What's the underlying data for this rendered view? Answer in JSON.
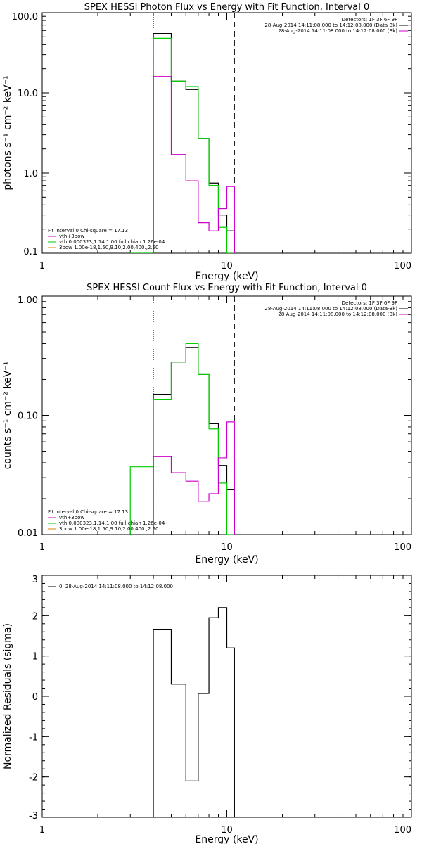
{
  "colors": {
    "black": "#000000",
    "magenta": "#cc00cc",
    "green": "#00cc00",
    "orange": "#e08000"
  },
  "panels": [
    {
      "id": "photon",
      "type": "line",
      "title": "SPEX HESSI Photon Flux vs Energy with Fit Function, Interval 0",
      "xlabel": "Energy (keV)",
      "ylabel": "photons s⁻¹ cm⁻² keV⁻¹",
      "xscale": "log",
      "yscale": "log",
      "xlim": [
        1,
        100
      ],
      "ylim": [
        0.1,
        100
      ],
      "xticks": [
        {
          "v": 1,
          "t": "1"
        },
        {
          "v": 10,
          "t": "10"
        },
        {
          "v": 100,
          "t": "100"
        }
      ],
      "yticks": [
        {
          "v": 0.1,
          "t": "0.1"
        },
        {
          "v": 1,
          "t": "1.0"
        },
        {
          "v": 10,
          "t": "10.0"
        },
        {
          "v": 100,
          "t": "100.0"
        }
      ],
      "vlines": [
        {
          "x": 4,
          "style": "dotted",
          "color": "black"
        },
        {
          "x": 11,
          "style": "dashed",
          "color": "black"
        }
      ],
      "legend_left_title": "Fit Interval 0   Chi-square = 17.13",
      "legend_left": [
        {
          "color": "magenta",
          "text": "vth+3pow"
        },
        {
          "color": "green",
          "text": "vth 0.000323,1.14,1.00   full chian 1.26e-04"
        },
        {
          "color": "orange",
          "text": "3pow 1.00e-18,1.50,9.10,2.00,400.,2.50"
        }
      ],
      "legend_right_title": "Detectors: 1F 3F 6F 9F",
      "legend_right": [
        {
          "color": "black",
          "text": "28-Aug-2014 14:11:08.000 to 14:12:08.000 (Data-Bk)"
        },
        {
          "color": "magenta",
          "text": "28-Aug-2014 14:11:08.000 to 14:12:08.000 (Bk)"
        }
      ],
      "series": [
        {
          "name": "Data-Bk",
          "color": "black",
          "edges": [
            4,
            5,
            6,
            7,
            8,
            9,
            10,
            11
          ],
          "values": [
            55,
            14,
            11,
            2.7,
            0.75,
            0.3,
            0.19
          ]
        },
        {
          "name": "vth+3pow",
          "color": "green",
          "edges": [
            3,
            4,
            5,
            6,
            7,
            8,
            9,
            10,
            11
          ],
          "values": [
            0.0001,
            48,
            14,
            12,
            2.7,
            0.7,
            0.21,
            0.0001
          ]
        },
        {
          "name": "Bk",
          "color": "magenta",
          "edges": [
            4,
            5,
            6,
            7,
            8,
            9,
            10,
            11
          ],
          "values": [
            16,
            1.7,
            0.8,
            0.24,
            0.19,
            0.36,
            0.68
          ]
        }
      ]
    },
    {
      "id": "count",
      "type": "line",
      "title": "SPEX HESSI Count Flux vs Energy with Fit Function, Interval 0",
      "xlabel": "Energy (keV)",
      "ylabel": "counts s⁻¹ cm⁻² keV⁻¹",
      "xscale": "log",
      "yscale": "log",
      "xlim": [
        1,
        100
      ],
      "ylim": [
        0.01,
        1
      ],
      "xticks": [
        {
          "v": 1,
          "t": "1"
        },
        {
          "v": 10,
          "t": "10"
        },
        {
          "v": 100,
          "t": "100"
        }
      ],
      "yticks": [
        {
          "v": 0.01,
          "t": "0.01"
        },
        {
          "v": 0.1,
          "t": "0.10"
        },
        {
          "v": 1,
          "t": "1.00"
        }
      ],
      "vlines": [
        {
          "x": 4,
          "style": "dotted",
          "color": "black"
        },
        {
          "x": 11,
          "style": "dashed",
          "color": "black"
        }
      ],
      "legend_left_title": "Fit Interval 0   Chi-square = 17.13",
      "legend_left": [
        {
          "color": "magenta",
          "text": "vth+3pow"
        },
        {
          "color": "green",
          "text": "vth 0.000323,1.14,1.00   full chian 1.26e-04"
        },
        {
          "color": "orange",
          "text": "3pow 1.00e-18,1.50,9.10,2.00,400.,2.50"
        }
      ],
      "legend_right_title": "Detectors: 1F 3F 6F 9F",
      "legend_right": [
        {
          "color": "black",
          "text": "28-Aug-2014 14:11:08.000 to 14:12:08.000 (Data-Bk)"
        },
        {
          "color": "magenta",
          "text": "28-Aug-2014 14:11:08.000 to 14:12:08.000 (Bk)"
        }
      ],
      "series": [
        {
          "name": "Data-Bk",
          "color": "black",
          "edges": [
            4,
            5,
            6,
            7,
            8,
            9,
            10,
            11
          ],
          "values": [
            0.15,
            0.28,
            0.37,
            0.22,
            0.085,
            0.038,
            0.024
          ]
        },
        {
          "name": "vth+3pow",
          "color": "green",
          "edges": [
            3,
            4,
            5,
            6,
            7,
            8,
            9,
            10,
            11
          ],
          "values": [
            0.037,
            0.135,
            0.28,
            0.4,
            0.22,
            0.077,
            0.027,
            0.0001
          ]
        },
        {
          "name": "Bk",
          "color": "magenta",
          "edges": [
            4,
            5,
            6,
            7,
            8,
            9,
            10,
            11
          ],
          "values": [
            0.045,
            0.033,
            0.028,
            0.019,
            0.022,
            0.044,
            0.088
          ]
        }
      ]
    },
    {
      "id": "residuals",
      "type": "line",
      "title": "",
      "xlabel": "Energy (keV)",
      "ylabel": "Normalized Residuals (sigma)",
      "xscale": "log",
      "yscale": "linear",
      "xlim": [
        1,
        100
      ],
      "ylim": [
        -3,
        3
      ],
      "xticks": [
        {
          "v": 1,
          "t": "1"
        },
        {
          "v": 10,
          "t": "10"
        },
        {
          "v": 100,
          "t": "100"
        }
      ],
      "yticks": [
        {
          "v": -3,
          "t": "-3"
        },
        {
          "v": -2,
          "t": "-2"
        },
        {
          "v": -1,
          "t": "-1"
        },
        {
          "v": 0,
          "t": "0"
        },
        {
          "v": 1,
          "t": "1"
        },
        {
          "v": 2,
          "t": "2"
        },
        {
          "v": 3,
          "t": "3"
        }
      ],
      "vlines": [],
      "legend_left_title": "",
      "legend_left": [
        {
          "color": "black",
          "text": "0. 28-Aug-2014 14:11:08.000 to 14:12:08.000"
        }
      ],
      "legend_right_title": "",
      "legend_right": [],
      "series": [
        {
          "name": "",
          "color": "black",
          "edges": [
            4,
            5,
            6,
            7,
            8,
            9,
            10,
            11
          ],
          "values": [
            1.65,
            0.3,
            -2.1,
            0.07,
            1.95,
            2.2,
            1.2
          ],
          "drop_ends": true
        }
      ]
    }
  ]
}
